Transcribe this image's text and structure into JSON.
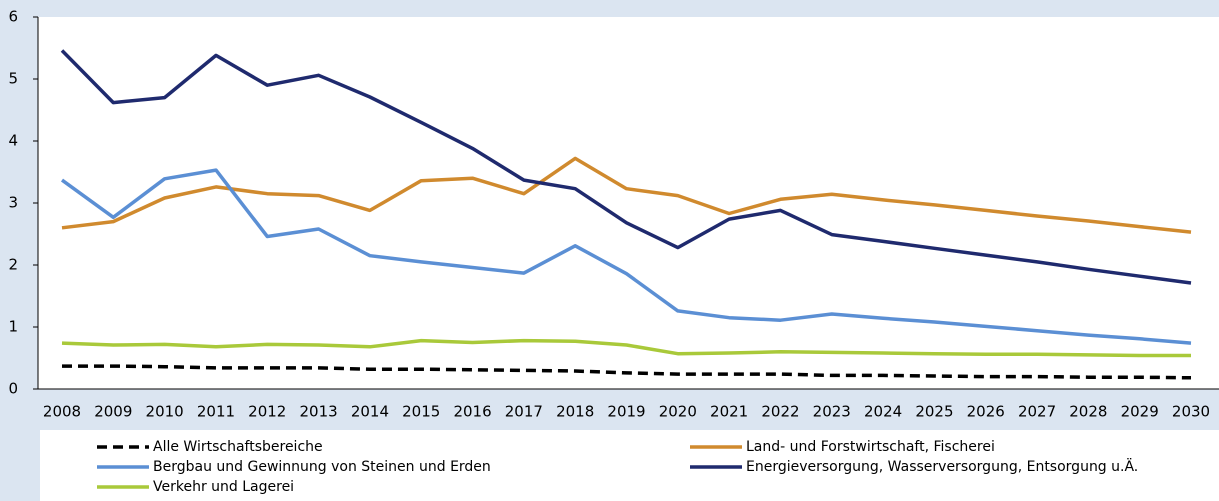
{
  "chart_data": {
    "type": "line",
    "categories": [
      "2008",
      "2009",
      "2010",
      "2011",
      "2012",
      "2013",
      "2014",
      "2015",
      "2016",
      "2017",
      "2018",
      "2019",
      "2020",
      "2021",
      "2022",
      "2023",
      "2024",
      "2025",
      "2026",
      "2027",
      "2028",
      "2029",
      "2030"
    ],
    "ylim": [
      0,
      6
    ],
    "yticks": [
      0,
      1,
      2,
      3,
      4,
      5,
      6
    ],
    "series": [
      {
        "name": "Alle Wirtschaftsbereiche",
        "color": "#000000",
        "dashed": true,
        "values": [
          0.37,
          0.37,
          0.36,
          0.34,
          0.34,
          0.34,
          0.32,
          0.32,
          0.31,
          0.3,
          0.29,
          0.26,
          0.24,
          0.24,
          0.24,
          0.22,
          0.22,
          0.21,
          0.2,
          0.2,
          0.19,
          0.19,
          0.18
        ]
      },
      {
        "name": "Land- und Forstwirtschaft, Fischerei",
        "color": "#d08a2e",
        "values": [
          2.6,
          2.7,
          3.08,
          3.26,
          3.15,
          3.12,
          2.88,
          3.36,
          3.4,
          3.15,
          3.72,
          3.23,
          3.12,
          2.83,
          3.06,
          3.14,
          3.05,
          2.97,
          2.88,
          2.79,
          2.71,
          2.62,
          2.53
        ]
      },
      {
        "name": "Bergbau und Gewinnung von Steinen und Erden",
        "color": "#5b8fd4",
        "values": [
          3.37,
          2.77,
          3.39,
          3.53,
          2.46,
          2.58,
          2.15,
          2.05,
          1.96,
          1.87,
          2.31,
          1.86,
          1.26,
          1.15,
          1.11,
          1.21,
          1.14,
          1.08,
          1.01,
          0.94,
          0.87,
          0.81,
          0.74
        ]
      },
      {
        "name": "Energieversorgung, Wasserversorgung, Entsorgung u.Ä.",
        "color": "#1f2a6e",
        "values": [
          5.46,
          4.62,
          4.7,
          5.38,
          4.9,
          5.06,
          4.71,
          4.3,
          3.88,
          3.37,
          3.23,
          2.68,
          2.28,
          2.74,
          2.88,
          2.49,
          2.38,
          2.27,
          2.16,
          2.05,
          1.93,
          1.82,
          1.71
        ]
      },
      {
        "name": "Verkehr und Lagerei",
        "color": "#a9c93a",
        "values": [
          0.74,
          0.71,
          0.72,
          0.68,
          0.72,
          0.71,
          0.68,
          0.78,
          0.75,
          0.78,
          0.77,
          0.71,
          0.57,
          0.58,
          0.6,
          0.59,
          0.58,
          0.57,
          0.56,
          0.56,
          0.55,
          0.54,
          0.54
        ]
      }
    ]
  }
}
